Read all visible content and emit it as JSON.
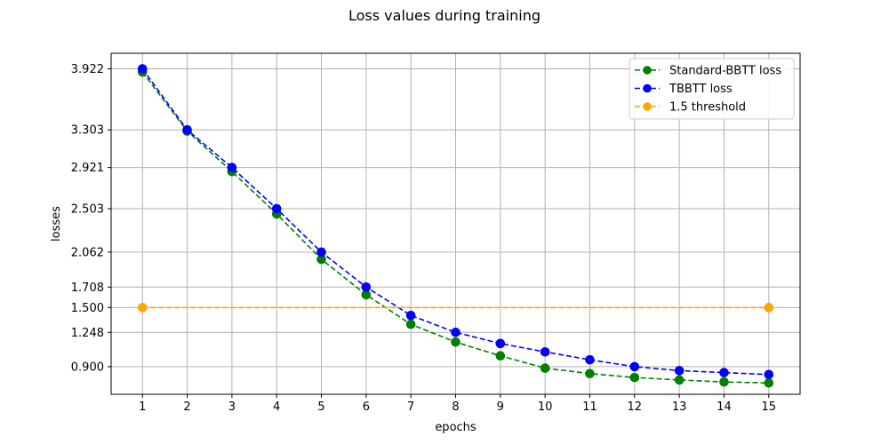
{
  "chart_data": {
    "type": "line",
    "title": "Loss values during training",
    "xlabel": "epochs",
    "ylabel": "losses",
    "x": [
      1,
      2,
      3,
      4,
      5,
      6,
      7,
      8,
      9,
      10,
      11,
      12,
      13,
      14,
      15
    ],
    "xlim": [
      0.3,
      15.7
    ],
    "ylim": [
      0.62,
      4.08
    ],
    "y_ticks": [
      0.9,
      1.248,
      1.5,
      1.708,
      2.062,
      2.503,
      2.921,
      3.303,
      3.922
    ],
    "y_tick_labels": [
      "0.900",
      "1.248",
      "1.500",
      "1.708",
      "2.062",
      "2.503",
      "2.921",
      "3.303",
      "3.922"
    ],
    "grid": true,
    "legend_position": "top-right",
    "series": [
      {
        "name": "Standard-BBTT loss",
        "color": "#008000",
        "linestyle": "dashed",
        "marker": "circle",
        "values": [
          3.89,
          3.29,
          2.88,
          2.45,
          1.99,
          1.63,
          1.33,
          1.15,
          1.01,
          0.885,
          0.83,
          0.79,
          0.765,
          0.745,
          0.735
        ]
      },
      {
        "name": "TBBTT loss",
        "color": "#0000ff",
        "linestyle": "dashed",
        "marker": "circle",
        "values": [
          3.922,
          3.303,
          2.921,
          2.503,
          2.062,
          1.708,
          1.42,
          1.248,
          1.135,
          1.05,
          0.97,
          0.9,
          0.86,
          0.84,
          0.82
        ]
      },
      {
        "name": "1.5 threshold",
        "color": "#ffa500",
        "linestyle": "dashed",
        "marker": "circle",
        "marker_positions": [
          1,
          15
        ],
        "values": [
          1.5,
          1.5,
          1.5,
          1.5,
          1.5,
          1.5,
          1.5,
          1.5,
          1.5,
          1.5,
          1.5,
          1.5,
          1.5,
          1.5,
          1.5
        ]
      }
    ]
  }
}
